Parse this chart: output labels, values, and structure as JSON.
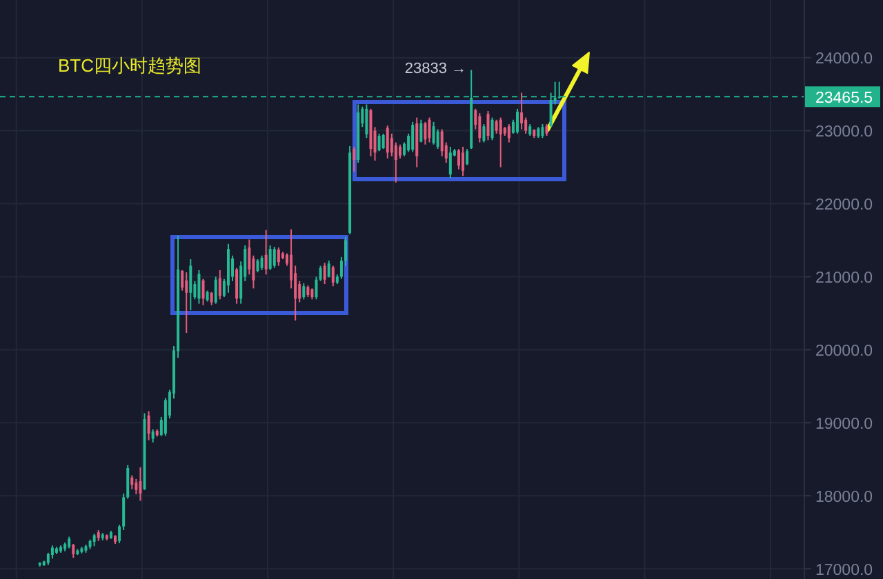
{
  "chart_data": {
    "type": "candlestick",
    "title": "BTC四小时趋势图",
    "categories": [
      null,
      null,
      null,
      null,
      null,
      null,
      null,
      null,
      null,
      null,
      null,
      null,
      null,
      null,
      null,
      null,
      null,
      null,
      null,
      null,
      null,
      null,
      null,
      null,
      null,
      null,
      null,
      null,
      null,
      null,
      null,
      null,
      null,
      null,
      null,
      null,
      null,
      null,
      null,
      null,
      null,
      null,
      null,
      null,
      null,
      null,
      null,
      null,
      null,
      null,
      null,
      null,
      null,
      null,
      null,
      null,
      null,
      null,
      null,
      null,
      null,
      null,
      null,
      null,
      null,
      null,
      null,
      null,
      null,
      null,
      null,
      null,
      null,
      null,
      null,
      null,
      null,
      null,
      null,
      null,
      null,
      null,
      null,
      null,
      null,
      null,
      null,
      null,
      null,
      null,
      null,
      null,
      null,
      null,
      null,
      null,
      null,
      null,
      null,
      null,
      null,
      null,
      null,
      null,
      null,
      null,
      null,
      null,
      null,
      null,
      null,
      null,
      null,
      null,
      null,
      null,
      null,
      null,
      null,
      null,
      null,
      null,
      null,
      null,
      null,
      null,
      null,
      null,
      null,
      null,
      null,
      null,
      null,
      null,
      null,
      null,
      null,
      null,
      null,
      null,
      null,
      null,
      null,
      null,
      null,
      null,
      null,
      null,
      null,
      null,
      null,
      null,
      null,
      null,
      null,
      null,
      null,
      null,
      null,
      null,
      null,
      null,
      null,
      null,
      null,
      null,
      null,
      null,
      null,
      null,
      null,
      null,
      null,
      null,
      null,
      null,
      null,
      null,
      null,
      null,
      null,
      null,
      null,
      null,
      null,
      null,
      null,
      null,
      null,
      null,
      null,
      null
    ],
    "ohlc": [
      null,
      null,
      null,
      null,
      null,
      null,
      null,
      null,
      null,
      [
        17050,
        17090,
        17030,
        17080
      ],
      [
        17050,
        17110,
        17040,
        17100
      ],
      [
        17080,
        17220,
        17050,
        17200
      ],
      [
        17190,
        17320,
        17140,
        17290
      ],
      [
        17220,
        17300,
        17200,
        17280
      ],
      [
        17240,
        17320,
        17220,
        17300
      ],
      [
        17270,
        17360,
        17240,
        17340
      ],
      [
        17300,
        17440,
        17280,
        17410
      ],
      [
        17330,
        17340,
        17150,
        17200
      ],
      [
        17200,
        17270,
        17190,
        17250
      ],
      [
        17230,
        17300,
        17210,
        17280
      ],
      [
        17250,
        17330,
        17220,
        17310
      ],
      [
        17300,
        17400,
        17270,
        17380
      ],
      [
        17370,
        17480,
        17310,
        17460
      ],
      [
        17500,
        17530,
        17380,
        17420
      ],
      [
        17420,
        17490,
        17390,
        17470
      ],
      [
        17460,
        17470,
        17390,
        17410
      ],
      [
        17420,
        17520,
        17410,
        17500
      ],
      [
        17450,
        17460,
        17340,
        17370
      ],
      [
        17380,
        17600,
        17350,
        17580
      ],
      [
        17580,
        18030,
        17530,
        17980
      ],
      [
        17980,
        18420,
        17960,
        18380
      ],
      [
        18250,
        18280,
        18090,
        18150
      ],
      [
        18180,
        18230,
        18020,
        18080
      ],
      [
        18200,
        18390,
        17930,
        18030
      ],
      [
        18090,
        19130,
        18080,
        19050
      ],
      [
        19100,
        19160,
        18760,
        18850
      ],
      [
        18780,
        18910,
        18730,
        18880
      ],
      [
        18890,
        18910,
        18810,
        18830
      ],
      [
        18830,
        19080,
        18820,
        19040
      ],
      [
        18850,
        19340,
        18820,
        19310
      ],
      [
        19100,
        19450,
        19060,
        19420
      ],
      [
        19400,
        20050,
        19330,
        19990
      ],
      [
        19980,
        21560,
        19890,
        21100
      ],
      [
        21080,
        21090,
        20810,
        20850
      ],
      [
        20950,
        21060,
        20230,
        20780
      ],
      [
        20780,
        21240,
        20540,
        21150
      ],
      [
        20720,
        20940,
        20690,
        20900
      ],
      [
        20700,
        21090,
        20630,
        21040
      ],
      [
        20950,
        20970,
        20610,
        20700
      ],
      [
        20680,
        20810,
        20660,
        20790
      ],
      [
        20780,
        20790,
        20610,
        20650
      ],
      [
        20650,
        21000,
        20630,
        20960
      ],
      [
        20980,
        21090,
        20690,
        20740
      ],
      [
        20740,
        20970,
        20720,
        20940
      ],
      [
        20880,
        21450,
        20780,
        21380
      ],
      [
        21000,
        21290,
        20940,
        21250
      ],
      [
        21100,
        21120,
        20630,
        20700
      ],
      [
        20700,
        21210,
        20630,
        21150
      ],
      [
        21000,
        21430,
        20940,
        21380
      ],
      [
        21400,
        21510,
        21030,
        21100
      ],
      [
        21250,
        21290,
        20840,
        20950
      ],
      [
        21080,
        21240,
        21060,
        21220
      ],
      [
        21120,
        21290,
        21090,
        21260
      ],
      [
        21300,
        21640,
        21030,
        21100
      ],
      [
        21110,
        21430,
        21090,
        21380
      ],
      [
        21150,
        21410,
        21120,
        21380
      ],
      [
        21370,
        21400,
        21150,
        21200
      ],
      [
        21320,
        21340,
        21240,
        21260
      ],
      [
        21300,
        21320,
        21150,
        21180
      ],
      [
        21300,
        21650,
        20840,
        20950
      ],
      [
        21050,
        21150,
        20400,
        20700
      ],
      [
        20900,
        20940,
        20650,
        20700
      ],
      [
        20720,
        20910,
        20690,
        20870
      ],
      [
        20860,
        20880,
        20720,
        20750
      ],
      [
        20830,
        20840,
        20690,
        20720
      ],
      [
        20720,
        21000,
        20690,
        20960
      ],
      [
        20960,
        21150,
        20940,
        21120
      ],
      [
        21150,
        21190,
        20900,
        20960
      ],
      [
        21000,
        21220,
        20990,
        21180
      ],
      [
        21130,
        21150,
        20870,
        20920
      ],
      [
        20920,
        21030,
        20900,
        21000
      ],
      [
        21000,
        21270,
        20970,
        21220
      ],
      [
        21220,
        21550,
        21150,
        21500
      ],
      [
        21600,
        22790,
        21580,
        22700
      ],
      [
        22750,
        22780,
        22440,
        22600
      ],
      [
        22600,
        23360,
        22560,
        23250
      ],
      [
        23100,
        23330,
        23050,
        23300
      ],
      [
        22950,
        23360,
        22900,
        23300
      ],
      [
        23280,
        23300,
        22650,
        22750
      ],
      [
        23000,
        23050,
        22590,
        22700
      ],
      [
        22730,
        22960,
        22720,
        22930
      ],
      [
        22760,
        22960,
        22750,
        22940
      ],
      [
        23040,
        23070,
        22620,
        22700
      ],
      [
        22900,
        22960,
        22650,
        22700
      ],
      [
        22800,
        22840,
        22290,
        22600
      ],
      [
        22780,
        22810,
        22620,
        22660
      ],
      [
        22670,
        22840,
        22650,
        22820
      ],
      [
        22730,
        22960,
        22710,
        22930
      ],
      [
        22740,
        23120,
        22710,
        23080
      ],
      [
        23100,
        23180,
        22500,
        22650
      ],
      [
        22850,
        23150,
        22840,
        23100
      ],
      [
        23100,
        23120,
        22810,
        22880
      ],
      [
        23150,
        23180,
        22840,
        22900
      ],
      [
        22830,
        23120,
        22810,
        23060
      ],
      [
        22780,
        23020,
        22750,
        22990
      ],
      [
        22990,
        23020,
        22650,
        22720
      ],
      [
        22800,
        22840,
        22560,
        22620
      ],
      [
        22400,
        22780,
        22350,
        22700
      ],
      [
        22660,
        22750,
        22650,
        22730
      ],
      [
        22730,
        22750,
        22470,
        22520
      ],
      [
        22700,
        22780,
        22380,
        22450
      ],
      [
        22540,
        22750,
        22530,
        22720
      ],
      [
        22760,
        23833,
        22750,
        23450
      ],
      [
        23280,
        23300,
        23020,
        23080
      ],
      [
        23200,
        23240,
        22840,
        22900
      ],
      [
        22860,
        23090,
        22840,
        23060
      ],
      [
        23230,
        23270,
        22870,
        22930
      ],
      [
        22900,
        23180,
        22870,
        23150
      ],
      [
        23130,
        23150,
        22960,
        23000
      ],
      [
        23150,
        23180,
        22500,
        22950
      ],
      [
        23040,
        23050,
        22930,
        22960
      ],
      [
        23060,
        23090,
        22840,
        22900
      ],
      [
        22970,
        23150,
        22960,
        23120
      ],
      [
        22980,
        23300,
        22960,
        23260
      ],
      [
        23250,
        23520,
        23020,
        23100
      ],
      [
        23150,
        23180,
        22960,
        23000
      ],
      [
        22950,
        23090,
        22930,
        23060
      ],
      [
        23010,
        23020,
        22900,
        22930
      ],
      [
        22920,
        23050,
        22900,
        23030
      ],
      [
        22930,
        23090,
        22900,
        23050
      ],
      [
        23060,
        23090,
        22930,
        22960
      ],
      [
        23060,
        23520,
        23050,
        23420
      ],
      [
        23400,
        23670,
        23360,
        23450
      ],
      [
        23450,
        23670,
        23440,
        23465.5
      ],
      null,
      null,
      null,
      null,
      null,
      null,
      null,
      null,
      null,
      null,
      null,
      null,
      null,
      null,
      null,
      null,
      null,
      null,
      null,
      null,
      null,
      null,
      null,
      null,
      null,
      null,
      null,
      null,
      null,
      null,
      null,
      null,
      null,
      null,
      null,
      null,
      null,
      null,
      null,
      null,
      null,
      null,
      null,
      null,
      null,
      null,
      null,
      null,
      null,
      null,
      null,
      null,
      null,
      null,
      null,
      null,
      null,
      null
    ],
    "colors": [
      null,
      null,
      null,
      null,
      null,
      null,
      null,
      null,
      null,
      "#27b894",
      "#27b894",
      "#27b894",
      "#27b894",
      "#27b894",
      "#27b894",
      "#27b894",
      "#27b894",
      "#e35d7d",
      "#27b894",
      "#27b894",
      "#27b894",
      "#27b894",
      "#27b894",
      "#e35d7d",
      "#27b894",
      "#e35d7d",
      "#27b894",
      "#e35d7d",
      "#27b894",
      "#27b894",
      "#27b894",
      "#e35d7d",
      "#e35d7d",
      "#e35d7d",
      "#27b894",
      "#e35d7d",
      "#27b894",
      "#e35d7d",
      "#27b894",
      "#27b894",
      "#27b894",
      "#27b894",
      "#27b894",
      "#e35d7d",
      "#e35d7d",
      "#27b894",
      "#27b894",
      "#27b894",
      "#e35d7d",
      "#27b894",
      "#e35d7d",
      "#27b894",
      "#e35d7d",
      "#27b894",
      "#27b894",
      "#27b894",
      "#e35d7d",
      "#27b894",
      "#27b894",
      "#e35d7d",
      "#e35d7d",
      "#27b894",
      "#27b894",
      "#e35d7d",
      "#27b894",
      "#27b894",
      "#e35d7d",
      "#e35d7d",
      "#e35d7d",
      "#e35d7d",
      "#e35d7d",
      "#e35d7d",
      "#27b894",
      "#e35d7d",
      "#e35d7d",
      "#27b894",
      "#27b894",
      "#e35d7d",
      "#27b894",
      "#e35d7d",
      "#27b894",
      "#27b894",
      "#27b894",
      "#27b894",
      "#e35d7d",
      "#27b894",
      "#27b894",
      "#27b894",
      "#e35d7d",
      "#e35d7d",
      "#27b894",
      "#27b894",
      "#e35d7d",
      "#e35d7d",
      "#e35d7d",
      "#e35d7d",
      "#27b894",
      "#27b894",
      "#27b894",
      "#e35d7d",
      "#27b894",
      "#e35d7d",
      "#e35d7d",
      "#27b894",
      "#27b894",
      "#e35d7d",
      "#e35d7d",
      "#27b894",
      "#27b894",
      "#e35d7d",
      "#e35d7d",
      "#27b894",
      "#27b894",
      "#e35d7d",
      "#e35d7d",
      "#27b894",
      "#e35d7d",
      "#27b894",
      "#e35d7d",
      "#e35d7d",
      "#e35d7d",
      "#e35d7d",
      "#27b894",
      "#27b894",
      "#e35d7d",
      "#e35d7d",
      "#27b894",
      "#e35d7d",
      "#27b894",
      "#27b894",
      "#e35d7d",
      "#27b894",
      "#27b894",
      "#27b894",
      null,
      null,
      null,
      null,
      null,
      null,
      null,
      null,
      null,
      null,
      null,
      null,
      null,
      null,
      null,
      null,
      null,
      null,
      null,
      null,
      null,
      null,
      null,
      null,
      null,
      null,
      null,
      null,
      null,
      null,
      null,
      null,
      null,
      null,
      null,
      null,
      null,
      null,
      null,
      null,
      null,
      null,
      null,
      null,
      null,
      null,
      null,
      null,
      null,
      null,
      null,
      null,
      null,
      null,
      null,
      null,
      null,
      null
    ],
    "ylim": [
      16860,
      24790
    ],
    "yticks": [
      {
        "value": 17000,
        "label": "17000.0"
      },
      {
        "value": 18000,
        "label": "18000.0"
      },
      {
        "value": 19000,
        "label": "19000.0"
      },
      {
        "value": 20000,
        "label": "20000.0"
      },
      {
        "value": 21000,
        "label": "21000.0"
      },
      {
        "value": 22000,
        "label": "22000.0"
      },
      {
        "value": 23000,
        "label": "23000.0"
      },
      {
        "value": 24000,
        "label": "24000.0"
      }
    ],
    "grid": true,
    "tick_labels": "y",
    "ref_lines": [
      {
        "axis": "y",
        "value": 23465.5,
        "label": "23465.5",
        "color": "#22b38c",
        "line_style": "dashed"
      }
    ],
    "annotations": [
      "23833 →"
    ]
  }
}
